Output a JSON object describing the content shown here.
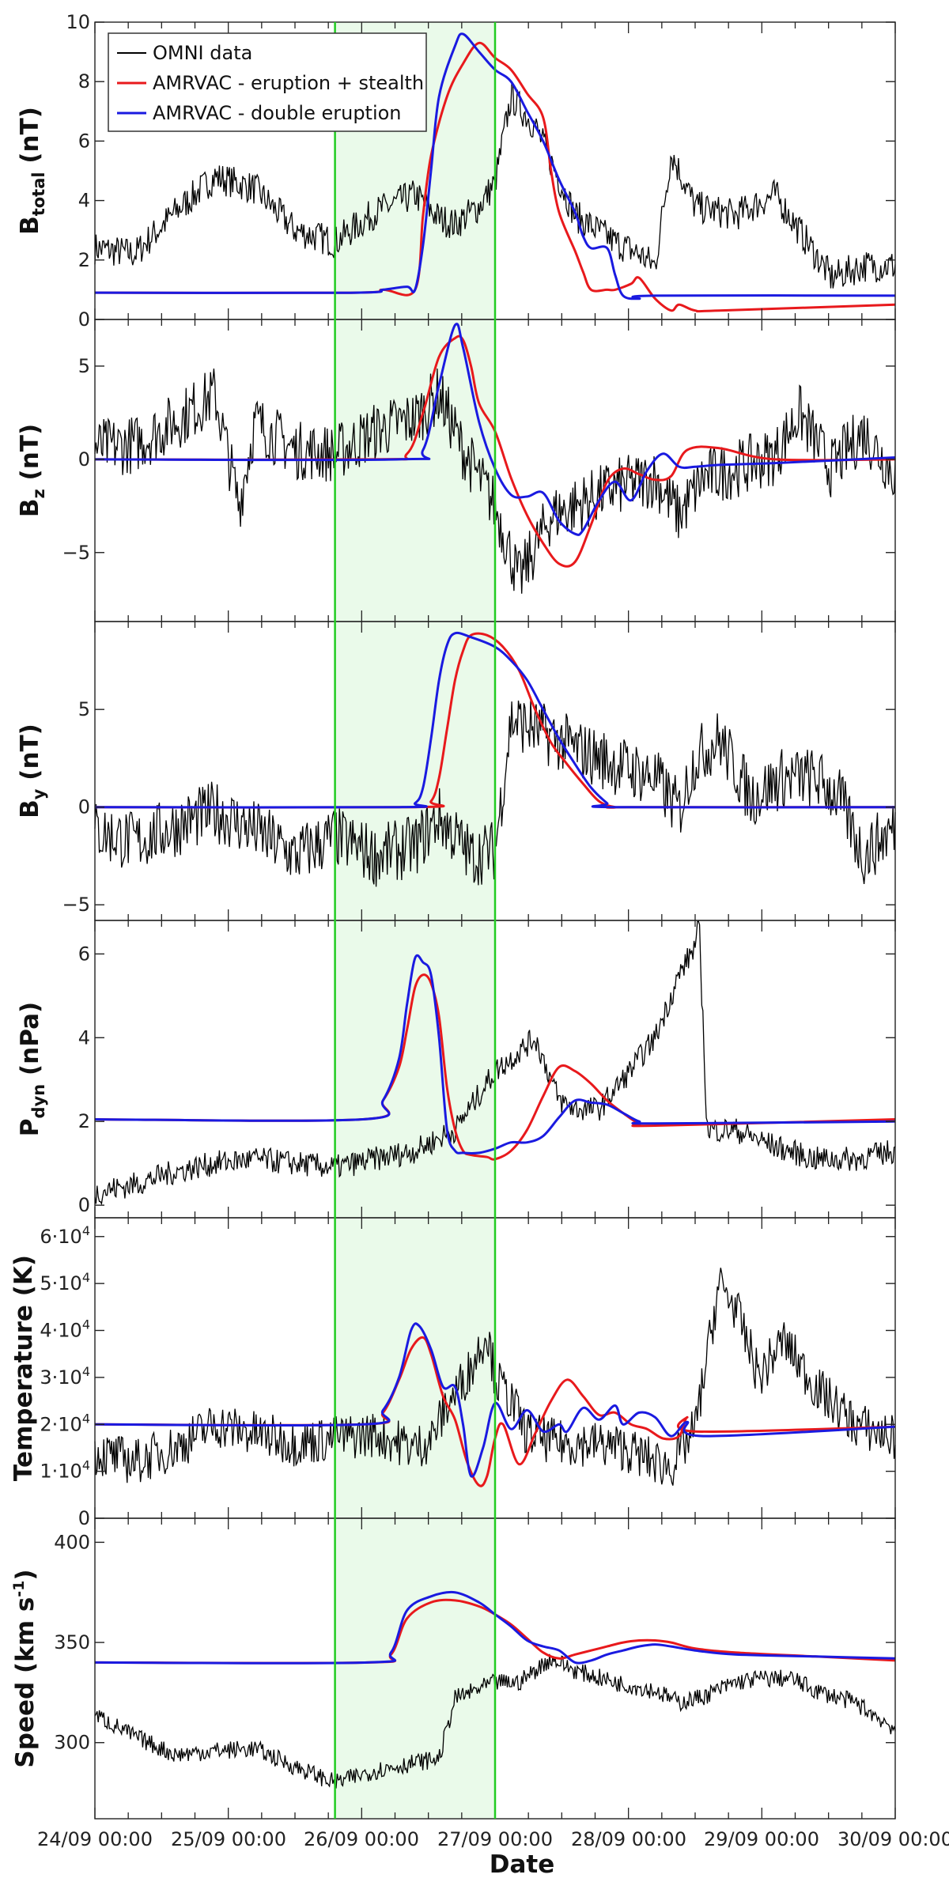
{
  "figure": {
    "xlabel": "Date",
    "shade_color": "#eafaea",
    "boundary_color": "#22cc22",
    "shade_interval": [
      3.0,
      5.0
    ]
  },
  "legend": [
    {
      "label": "OMNI data",
      "color": "#000000"
    },
    {
      "label": "AMRVAC - eruption + stealth",
      "color": "#e8191c"
    },
    {
      "label": "AMRVAC - double eruption",
      "color": "#1a1ae0"
    }
  ],
  "chart_data": {
    "type": "line",
    "title": "",
    "xlabel": "Date",
    "x_range": [
      0,
      10
    ],
    "x_unit": "days since 24/09 00:00",
    "x_ticks": [
      {
        "value": 0,
        "label": "24/09 00:00"
      },
      {
        "value": 1.67,
        "label": "25/09 00:00"
      },
      {
        "value": 3.33,
        "label": "26/09 00:00"
      },
      {
        "value": 5.0,
        "label": "27/09 00:00"
      },
      {
        "value": 6.67,
        "label": "28/09 00:00"
      },
      {
        "value": 8.33,
        "label": "29/09 00:00"
      },
      {
        "value": 10.0,
        "label": "30/09 00:00"
      }
    ],
    "panels": [
      {
        "id": "btotal",
        "ylabel_main": "B",
        "ylabel_sub": "total",
        "ylabel_rest": " (nT)",
        "ylim": [
          0,
          10
        ],
        "yticks": [
          {
            "v": 0,
            "t": "0"
          },
          {
            "v": 2,
            "t": "2"
          },
          {
            "v": 4,
            "t": "4"
          },
          {
            "v": 6,
            "t": "6"
          },
          {
            "v": 8,
            "t": "8"
          },
          {
            "v": 10,
            "t": "10"
          }
        ],
        "series": [
          {
            "name": "AMRVAC - eruption + stealth",
            "color": "#e8191c",
            "x": [
              0,
              3.2,
              3.6,
              4.0,
              4.1,
              4.2,
              4.4,
              4.6,
              4.8,
              5.0,
              5.2,
              5.4,
              5.6,
              5.7,
              5.8,
              6.0,
              6.1,
              6.2,
              6.4,
              6.5,
              6.7,
              6.8,
              7.0,
              7.2,
              7.3,
              7.5,
              7.8,
              10
            ],
            "y": [
              0.9,
              0.9,
              1.0,
              1.0,
              3.5,
              5.5,
              7.5,
              8.6,
              9.3,
              8.8,
              8.4,
              7.6,
              6.8,
              5.0,
              3.6,
              2.3,
              1.6,
              1.0,
              1.0,
              1.0,
              1.2,
              1.4,
              0.7,
              0.3,
              0.5,
              0.3,
              0.3,
              0.5
            ]
          },
          {
            "name": "AMRVAC - double eruption",
            "color": "#1a1ae0",
            "x": [
              0,
              3.2,
              3.6,
              3.9,
              4.0,
              4.1,
              4.2,
              4.3,
              4.5,
              4.6,
              4.8,
              5.0,
              5.2,
              5.4,
              5.6,
              5.8,
              6.0,
              6.1,
              6.2,
              6.4,
              6.5,
              6.6,
              6.8,
              7.0,
              10
            ],
            "y": [
              0.9,
              0.9,
              1.0,
              1.1,
              1.0,
              2.5,
              5.0,
              7.5,
              9.2,
              9.6,
              9.0,
              8.4,
              8.0,
              7.0,
              6.0,
              4.7,
              3.6,
              2.8,
              2.4,
              2.4,
              1.5,
              0.8,
              0.7,
              0.8,
              0.8
            ]
          }
        ]
      },
      {
        "id": "bz",
        "ylabel_main": "B",
        "ylabel_sub": "z",
        "ylabel_rest": " (nT)",
        "ylim": [
          -8.7,
          7.5
        ],
        "yticks": [
          {
            "v": -5,
            "t": "−5"
          },
          {
            "v": 0,
            "t": "0"
          },
          {
            "v": 5,
            "t": "5"
          }
        ],
        "series": [
          {
            "name": "AMRVAC - eruption + stealth",
            "color": "#e8191c",
            "x": [
              0,
              3.5,
              3.9,
              4.1,
              4.3,
              4.5,
              4.6,
              4.7,
              4.8,
              5.0,
              5.2,
              5.4,
              5.6,
              5.8,
              6.0,
              6.2,
              6.4,
              6.6,
              6.8,
              7.0,
              7.2,
              7.4,
              7.8,
              8.5,
              10
            ],
            "y": [
              0,
              0,
              0.3,
              2.5,
              5.5,
              6.5,
              6.4,
              5.0,
              3.0,
              1.5,
              -1.0,
              -3.0,
              -4.5,
              -5.6,
              -5.5,
              -3.5,
              -1.2,
              -0.5,
              -0.8,
              -1.1,
              -0.9,
              0.5,
              0.6,
              0,
              0
            ]
          },
          {
            "name": "AMRVAC - double eruption",
            "color": "#1a1ae0",
            "x": [
              0,
              3.8,
              4.1,
              4.3,
              4.5,
              4.6,
              4.8,
              5.0,
              5.2,
              5.4,
              5.6,
              5.8,
              6.0,
              6.1,
              6.3,
              6.5,
              6.7,
              6.9,
              7.1,
              7.3,
              7.5,
              7.8,
              8.5,
              10
            ],
            "y": [
              0,
              0,
              0.5,
              4.0,
              7.2,
              6.0,
              2.0,
              -0.5,
              -1.9,
              -2.0,
              -1.8,
              -3.3,
              -4.0,
              -3.8,
              -2.2,
              -1.2,
              -2.2,
              -0.6,
              0.3,
              -0.4,
              -0.4,
              -0.3,
              -0.2,
              0.1
            ]
          }
        ]
      },
      {
        "id": "by",
        "ylabel_main": "B",
        "ylabel_sub": "y",
        "ylabel_rest": " (nT)",
        "ylim": [
          -5.8,
          9.5
        ],
        "yticks": [
          {
            "v": -5,
            "t": "−5"
          },
          {
            "v": 0,
            "t": "0"
          },
          {
            "v": 5,
            "t": "5"
          }
        ],
        "series": [
          {
            "name": "AMRVAC - eruption + stealth",
            "color": "#e8191c",
            "x": [
              0,
              4.0,
              4.2,
              4.3,
              4.4,
              4.5,
              4.6,
              4.7,
              4.9,
              5.1,
              5.3,
              5.5,
              5.7,
              5.9,
              6.1,
              6.3,
              6.5,
              6.7,
              10
            ],
            "y": [
              0,
              0,
              0.3,
              1.5,
              4.0,
              6.5,
              8.0,
              8.8,
              8.8,
              8.2,
              7.0,
              5.0,
              3.3,
              2.2,
              1.2,
              0.3,
              0,
              0,
              0
            ]
          },
          {
            "name": "AMRVAC - double eruption",
            "color": "#1a1ae0",
            "x": [
              0,
              3.8,
              4.0,
              4.1,
              4.2,
              4.3,
              4.4,
              4.5,
              4.7,
              5.0,
              5.2,
              5.4,
              5.6,
              5.8,
              6.0,
              6.2,
              6.4,
              6.5,
              10
            ],
            "y": [
              0,
              0,
              0.2,
              1.0,
              3.5,
              6.5,
              8.3,
              8.9,
              8.7,
              8.2,
              7.5,
              6.5,
              5.0,
              3.5,
              2.2,
              1.0,
              0.2,
              0,
              0
            ]
          }
        ]
      },
      {
        "id": "pdyn",
        "ylabel_main": "P",
        "ylabel_sub": "dyn",
        "ylabel_rest": " (nPa)",
        "ylim": [
          -0.3,
          6.8
        ],
        "yticks": [
          {
            "v": 0,
            "t": "0"
          },
          {
            "v": 2,
            "t": "2"
          },
          {
            "v": 4,
            "t": "4"
          },
          {
            "v": 6,
            "t": "6"
          }
        ],
        "series": [
          {
            "name": "AMRVAC - eruption + stealth",
            "color": "#e8191c",
            "x": [
              0,
              3.35,
              3.6,
              3.8,
              3.9,
              4.0,
              4.1,
              4.2,
              4.3,
              4.4,
              4.5,
              4.6,
              4.7,
              4.9,
              5.0,
              5.2,
              5.4,
              5.6,
              5.8,
              6.0,
              6.2,
              6.4,
              6.6,
              6.8,
              7.0,
              10
            ],
            "y": [
              2.05,
              2.05,
              2.5,
              3.3,
              4.2,
              5.2,
              5.5,
              5.3,
              4.5,
              2.8,
              1.8,
              1.3,
              1.2,
              1.15,
              1.1,
              1.3,
              1.8,
              2.6,
              3.3,
              3.2,
              2.9,
              2.5,
              2.2,
              1.95,
              1.9,
              2.05
            ]
          },
          {
            "name": "AMRVAC - double eruption",
            "color": "#1a1ae0",
            "x": [
              0,
              3.35,
              3.6,
              3.8,
              3.9,
              4.0,
              4.1,
              4.2,
              4.3,
              4.4,
              4.5,
              4.6,
              4.8,
              5.0,
              5.2,
              5.4,
              5.6,
              5.8,
              6.0,
              6.2,
              6.4,
              6.6,
              6.8,
              7.0,
              10
            ],
            "y": [
              2.05,
              2.05,
              2.5,
              3.5,
              4.8,
              5.9,
              5.8,
              5.5,
              4.0,
              1.8,
              1.3,
              1.25,
              1.25,
              1.35,
              1.5,
              1.5,
              1.65,
              2.1,
              2.5,
              2.45,
              2.4,
              2.2,
              2.0,
              1.95,
              2.0
            ]
          }
        ]
      },
      {
        "id": "temp",
        "ylabel_main": "Temperature",
        "ylabel_sub": "",
        "ylabel_rest": " (K)",
        "ylim": [
          0,
          64000
        ],
        "yticks": [
          {
            "v": 0,
            "t": "0"
          },
          {
            "v": 10000,
            "t": "1·10",
            "e": "4"
          },
          {
            "v": 20000,
            "t": "2·10",
            "e": "4"
          },
          {
            "v": 30000,
            "t": "3·10",
            "e": "4"
          },
          {
            "v": 40000,
            "t": "4·10",
            "e": "4"
          },
          {
            "v": 50000,
            "t": "5·10",
            "e": "4"
          },
          {
            "v": 60000,
            "t": "6·10",
            "e": "4"
          }
        ],
        "series": [
          {
            "name": "AMRVAC - eruption + stealth",
            "color": "#e8191c",
            "x": [
              0,
              3.35,
              3.6,
              3.8,
              3.95,
              4.1,
              4.2,
              4.35,
              4.5,
              4.65,
              4.8,
              4.9,
              5.0,
              5.1,
              5.3,
              5.5,
              5.7,
              5.9,
              6.1,
              6.3,
              6.5,
              6.7,
              6.9,
              7.1,
              7.3,
              7.4,
              7.5,
              10
            ],
            "y": [
              20000,
              20000,
              22500,
              29500,
              36000,
              38500,
              35000,
              26000,
              21000,
              12000,
              7000,
              9000,
              17000,
              20000,
              11500,
              18000,
              25000,
              29500,
              26000,
              22000,
              22500,
              20000,
              19000,
              17000,
              17500,
              21500,
              18500,
              19500
            ]
          },
          {
            "name": "AMRVAC - double eruption",
            "color": "#1a1ae0",
            "x": [
              0,
              3.35,
              3.6,
              3.8,
              3.95,
              4.05,
              4.2,
              4.35,
              4.5,
              4.6,
              4.7,
              4.85,
              5.0,
              5.2,
              5.4,
              5.6,
              5.8,
              5.9,
              6.1,
              6.3,
              6.5,
              6.6,
              6.8,
              7.0,
              7.2,
              7.4,
              7.6,
              10
            ],
            "y": [
              20000,
              20000,
              23000,
              30000,
              40000,
              41000,
              36000,
              28000,
              28000,
              20000,
              9000,
              15000,
              24500,
              19000,
              23000,
              18500,
              20000,
              18500,
              23500,
              21000,
              24000,
              20000,
              22500,
              21500,
              17500,
              20500,
              17500,
              19500
            ]
          }
        ]
      },
      {
        "id": "speed",
        "ylabel_main": "Speed",
        "ylabel_sub": "",
        "ylabel_rest": " (km s",
        "ylabel_exp": "-1",
        "ylabel_close": ")",
        "ylim": [
          262,
          412
        ],
        "yticks": [
          {
            "v": 300,
            "t": "300"
          },
          {
            "v": 350,
            "t": "350"
          },
          {
            "v": 400,
            "t": "400"
          }
        ],
        "series": [
          {
            "name": "AMRVAC - eruption + stealth",
            "color": "#e8191c",
            "x": [
              0,
              3.4,
              3.7,
              3.9,
              4.2,
              4.5,
              4.8,
              5.0,
              5.2,
              5.4,
              5.6,
              5.8,
              6.0,
              6.2,
              6.4,
              6.6,
              6.8,
              7.0,
              7.2,
              7.5,
              8.0,
              9.0,
              10
            ],
            "y": [
              340,
              340,
              344,
              362,
              370,
              371,
              368,
              364,
              359,
              352,
              345,
              342,
              344,
              346,
              348,
              350,
              351,
              351,
              350,
              347,
              345,
              343,
              341
            ]
          },
          {
            "name": "AMRVAC - double eruption",
            "color": "#1a1ae0",
            "x": [
              0,
              3.4,
              3.7,
              3.9,
              4.2,
              4.5,
              4.8,
              5.0,
              5.2,
              5.4,
              5.6,
              5.8,
              6.0,
              6.2,
              6.4,
              6.6,
              6.8,
              7.0,
              7.2,
              7.5,
              8.0,
              9.0,
              10
            ],
            "y": [
              340,
              340,
              345,
              366,
              373,
              375,
              370,
              364,
              358,
              351,
              348,
              346,
              340,
              341,
              344,
              346,
              348,
              349,
              348,
              346,
              344,
              343,
              342
            ]
          }
        ]
      }
    ]
  }
}
